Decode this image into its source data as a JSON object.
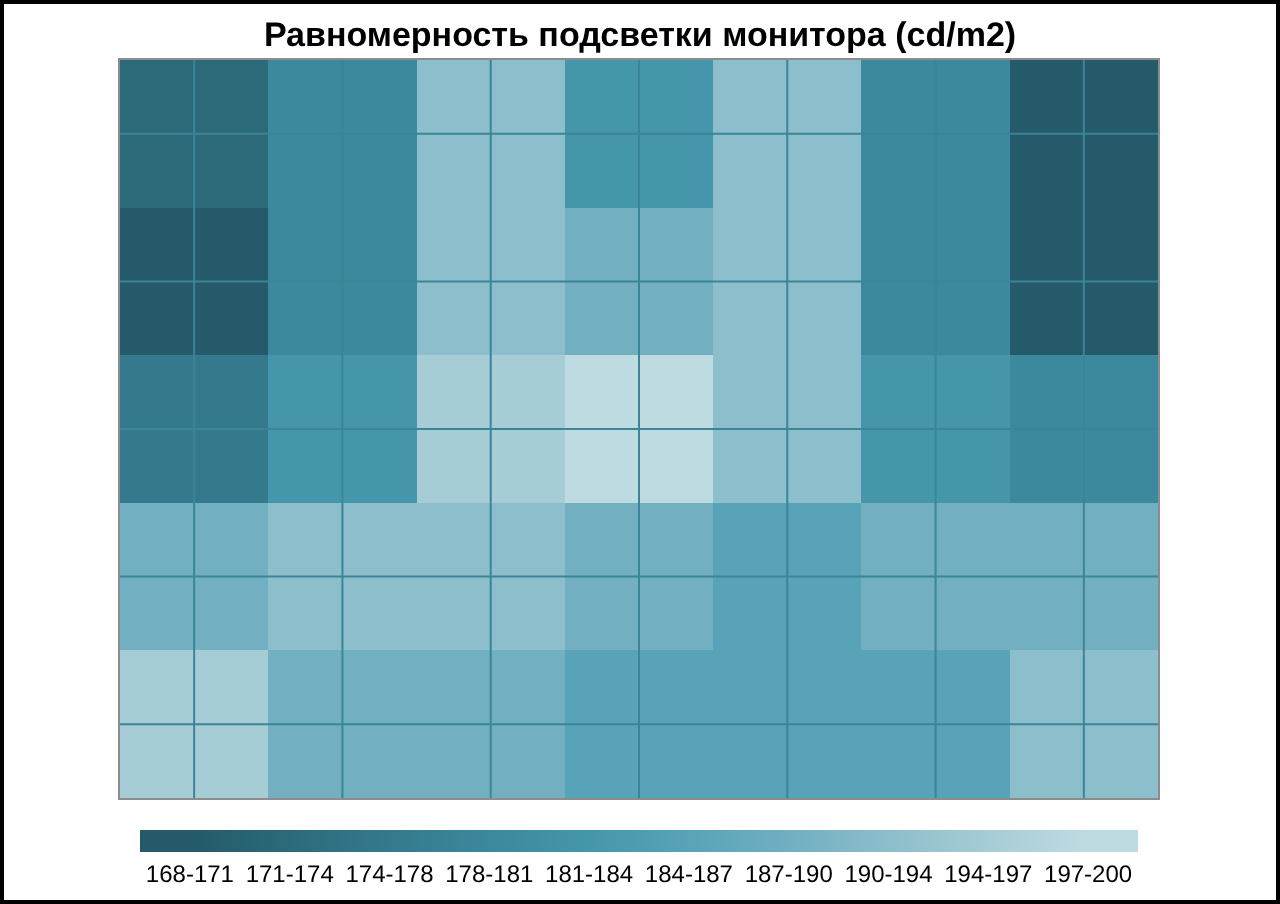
{
  "chart_data": {
    "type": "heatmap",
    "title": "Равномерность подсветки монитора (cd/m2)",
    "categories": [
      null,
      null,
      null,
      null,
      null,
      null,
      null
    ],
    "y_categories": [
      null,
      null,
      null,
      null,
      null
    ],
    "cells": [
      [
        172.8,
        179.2,
        192,
        182.4,
        192,
        179.2,
        169.6
      ],
      [
        169.6,
        179.2,
        192,
        188.8,
        192,
        179.2,
        169.6
      ],
      [
        176,
        182.4,
        195.2,
        198.4,
        192,
        182.4,
        179.2
      ],
      [
        188.8,
        192,
        192,
        188.8,
        185.6,
        188.8,
        188.8
      ],
      [
        195.2,
        188.8,
        188.8,
        185.6,
        185.6,
        185.6,
        192
      ]
    ],
    "clim": [
      168,
      200
    ],
    "cticks": [
      {
        "value": 169.6,
        "label": "168-171"
      },
      {
        "value": 172.8,
        "label": "171-174"
      },
      {
        "value": 176,
        "label": "174-178"
      },
      {
        "value": 179.2,
        "label": "178-181"
      },
      {
        "value": 182.4,
        "label": "181-184"
      },
      {
        "value": 185.6,
        "label": "184-187"
      },
      {
        "value": 188.8,
        "label": "187-190"
      },
      {
        "value": 192,
        "label": "190-194"
      },
      {
        "value": 195.2,
        "label": "194-197"
      },
      {
        "value": 198.4,
        "label": "197-200"
      }
    ],
    "colors": [
      "#245a69",
      "#2c6a7a",
      "#347a8c",
      "#3c889c",
      "#4696ab",
      "#58a3b7",
      "#71afc1",
      "#8cbecb",
      "#a6ccd6",
      "#bfdbe2"
    ],
    "grid": true
  }
}
